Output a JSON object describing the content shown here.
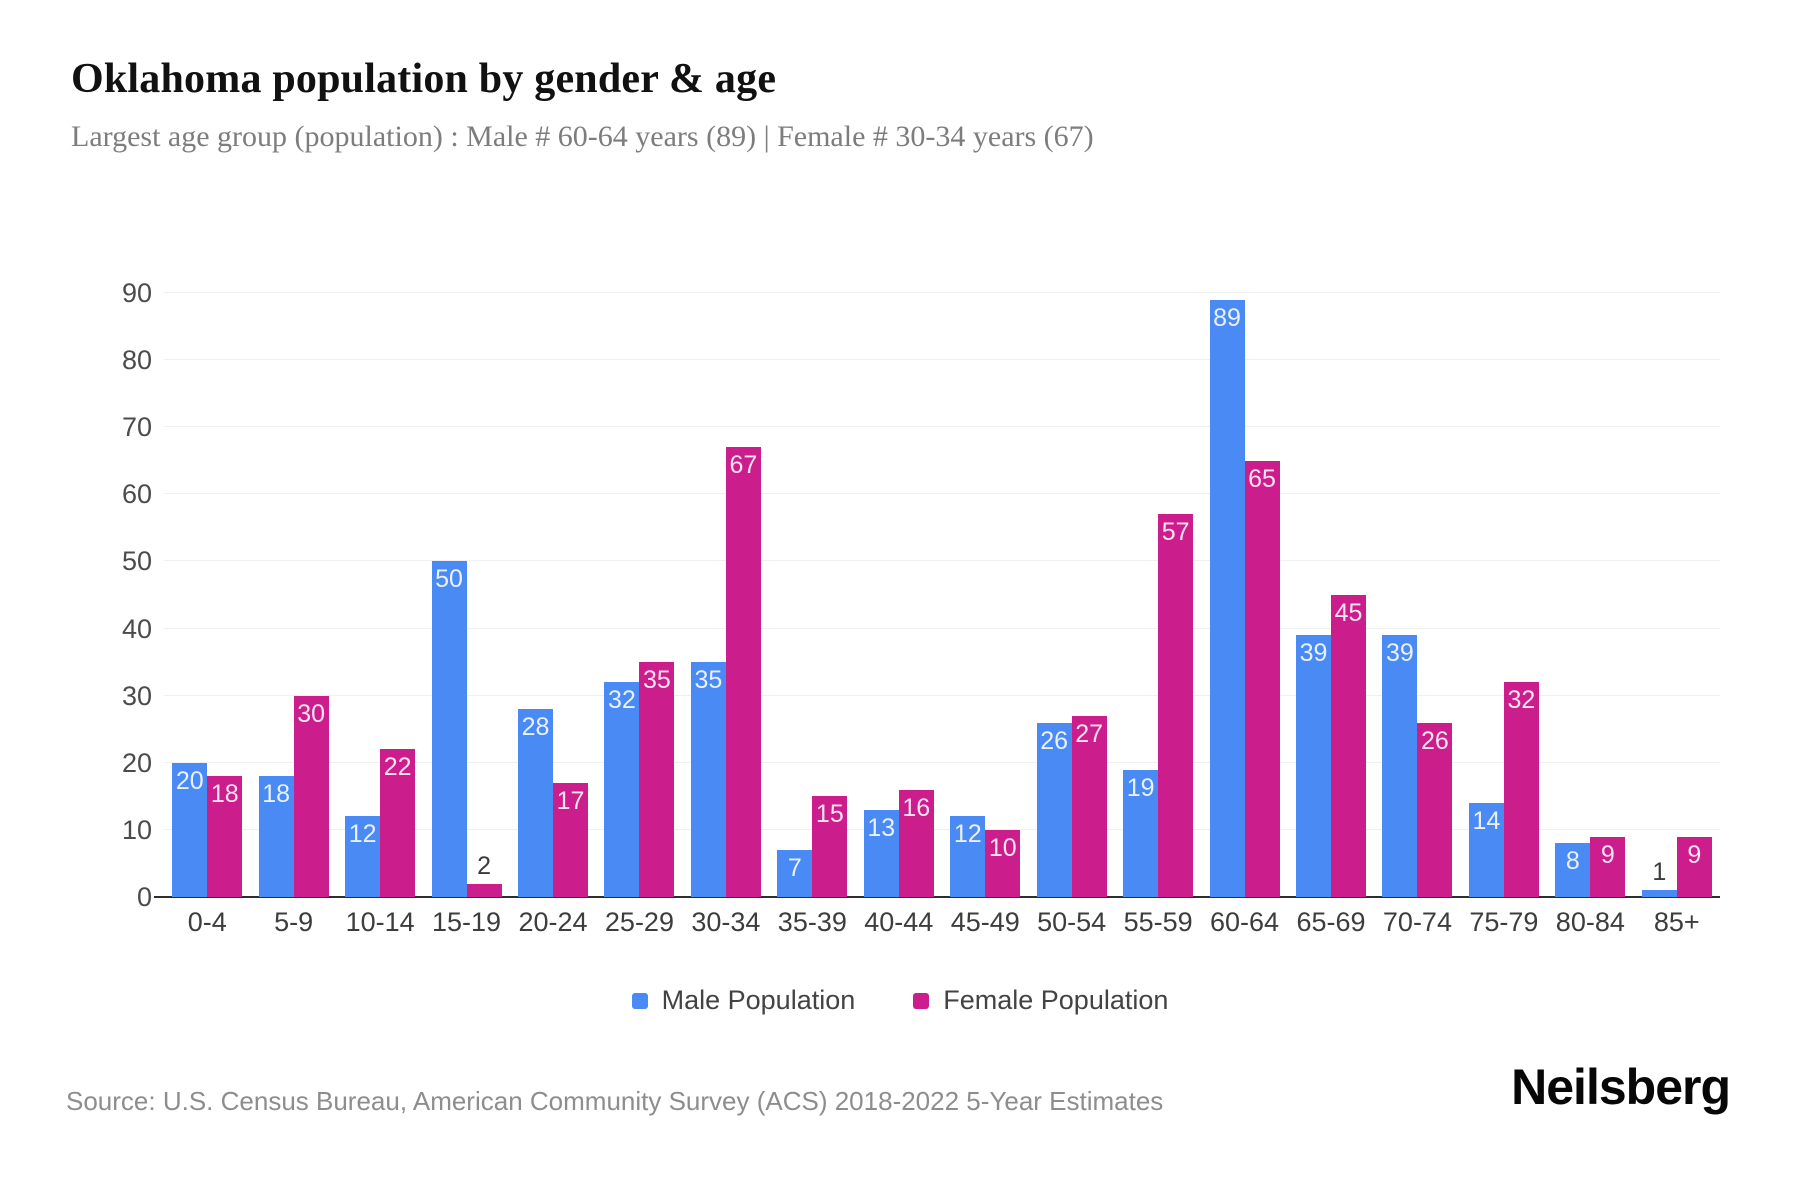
{
  "header": {
    "title": "Oklahoma population by gender & age",
    "subtitle": "Largest age group (population) : Male # 60-64 years (89) | Female # 30-34 years (67)"
  },
  "chart_data": {
    "type": "bar",
    "title": "Oklahoma population by gender & age",
    "categories": [
      "0-4",
      "5-9",
      "10-14",
      "15-19",
      "20-24",
      "25-29",
      "30-34",
      "35-39",
      "40-44",
      "45-49",
      "50-54",
      "55-59",
      "60-64",
      "65-69",
      "70-74",
      "75-79",
      "80-84",
      "85+"
    ],
    "series": [
      {
        "name": "Male Population",
        "values": [
          20,
          18,
          12,
          50,
          28,
          32,
          35,
          7,
          13,
          12,
          26,
          19,
          89,
          39,
          39,
          14,
          8,
          1
        ]
      },
      {
        "name": "Female Population",
        "values": [
          18,
          30,
          22,
          2,
          17,
          35,
          67,
          15,
          16,
          10,
          27,
          57,
          65,
          45,
          26,
          32,
          9,
          9
        ]
      }
    ],
    "xlabel": "",
    "ylabel": "",
    "ylim": [
      0,
      90
    ],
    "yticks": [
      0,
      10,
      20,
      30,
      40,
      50,
      60,
      70,
      80,
      90
    ],
    "grid": true,
    "legend_position": "bottom",
    "bar_value_labels": true
  },
  "colors": {
    "male": "#4a8af4",
    "female": "#cc1d8c",
    "grid": "#f0f0f0",
    "axis": "#2e2e2e"
  },
  "legend": {
    "male_label": "Male Population",
    "female_label": "Female Population"
  },
  "footer": {
    "source": "Source: U.S. Census Bureau, American Community Survey (ACS) 2018-2022 5-Year Estimates",
    "brand": "Neilsberg"
  }
}
